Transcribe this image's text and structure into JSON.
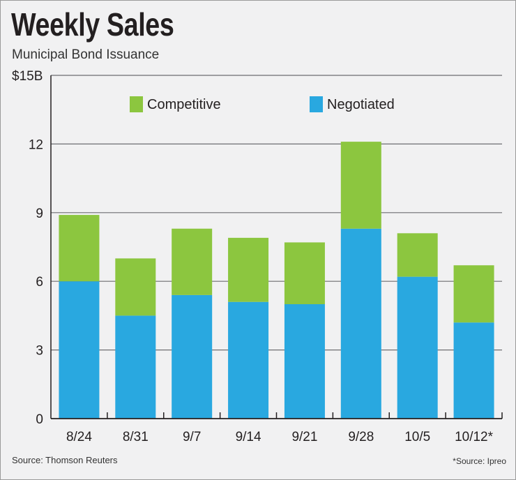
{
  "header": {
    "title": "Weekly Sales",
    "subtitle": "Municipal Bond Issuance"
  },
  "footer": {
    "source_left": "Source: Thomson Reuters",
    "source_right": "*Source: Ipreo"
  },
  "chart_data": {
    "type": "bar",
    "stacked": true,
    "title": "Weekly Sales",
    "subtitle": "Municipal Bond Issuance",
    "xlabel": "",
    "ylabel": "",
    "categories": [
      "8/24",
      "8/31",
      "9/7",
      "9/14",
      "9/21",
      "9/28",
      "10/5",
      "10/12*"
    ],
    "series": [
      {
        "name": "Negotiated",
        "color": "#29a8e0",
        "values": [
          6.0,
          4.5,
          5.4,
          5.1,
          5.0,
          8.3,
          6.2,
          4.2
        ]
      },
      {
        "name": "Competitive",
        "color": "#8cc63f",
        "values": [
          2.9,
          2.5,
          2.9,
          2.8,
          2.7,
          3.8,
          1.9,
          2.5
        ]
      }
    ],
    "ylim": [
      0,
      15
    ],
    "yticks": [
      0,
      3,
      6,
      9,
      12,
      15
    ],
    "ytick_labels": [
      "0",
      "3",
      "6",
      "9",
      "12",
      "$15B"
    ],
    "grid": true,
    "legend": {
      "position": "top",
      "order": [
        "Competitive",
        "Negotiated"
      ]
    }
  }
}
